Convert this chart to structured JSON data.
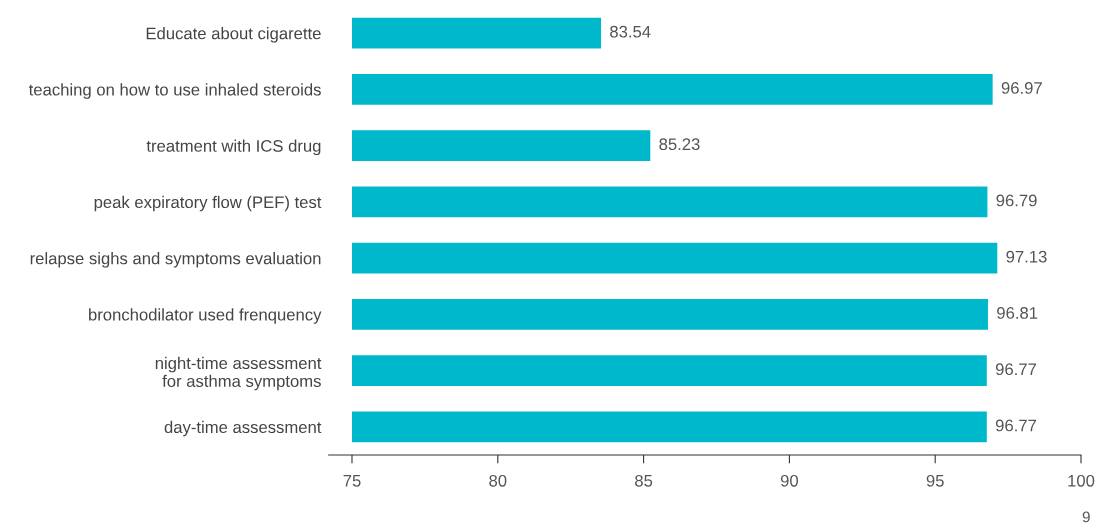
{
  "chart_data": {
    "type": "bar",
    "orientation": "horizontal",
    "categories": [
      "Educate about cigarette",
      "teaching on how to use inhaled steroids",
      "treatment with ICS drug",
      "peak expiratory flow (PEF) test",
      "relapse sighs and symptoms evaluation",
      "bronchodilator used frenquency",
      "night-time assessment\nfor asthma symptoms",
      "day-time assessment"
    ],
    "values": [
      83.54,
      96.97,
      85.23,
      96.79,
      97.13,
      96.81,
      96.77,
      96.77
    ],
    "color": "#00b8cc",
    "data_labels": true,
    "xlim": [
      75,
      100
    ],
    "xticks": [
      75,
      80,
      85,
      90,
      95,
      100
    ],
    "grid": false,
    "legend": false,
    "annotations": [
      "9"
    ]
  }
}
